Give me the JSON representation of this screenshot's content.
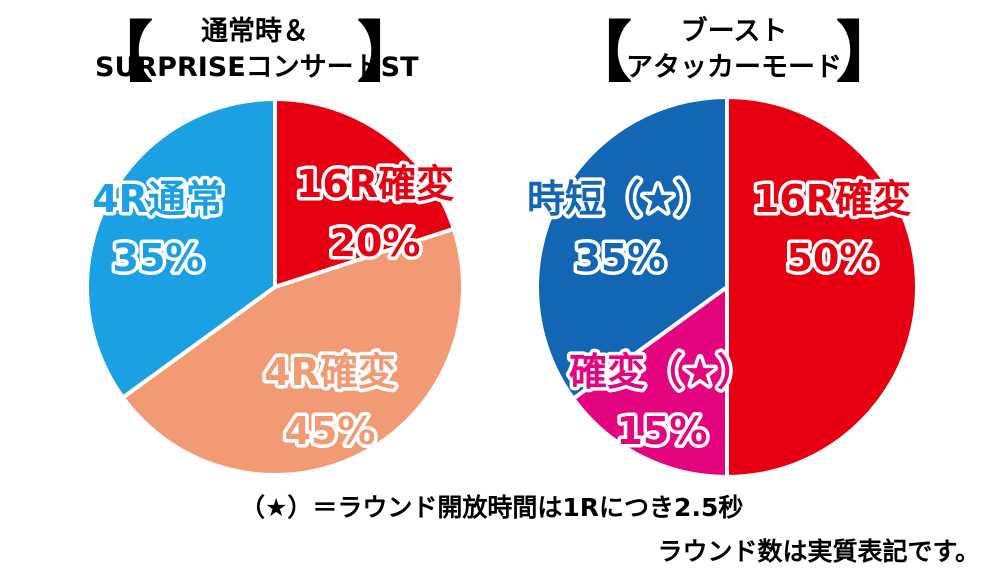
{
  "charts": {
    "left": {
      "title_line1": "通常時＆",
      "title_line2": "SURPRISEコンサートST",
      "bracket_open": "【",
      "bracket_close": "】"
    },
    "right": {
      "title_line1": "ブースト",
      "title_line2": "アタッカーモード",
      "bracket_open": "【",
      "bracket_close": "】"
    }
  },
  "notes": {
    "line1": "（★）＝ラウンド開放時間は1Rにつき2.5秒",
    "line2": "ラウンド数は実質表記です。"
  },
  "chart_data": [
    {
      "type": "pie",
      "title": "通常時＆SURPRISEコンサートST",
      "slices": [
        {
          "label": "16R確変",
          "value": 20,
          "display": "20%",
          "color": "#e60012"
        },
        {
          "label": "4R確変",
          "value": 45,
          "display": "45%",
          "color": "#f19a74"
        },
        {
          "label": "4R通常",
          "value": 35,
          "display": "35%",
          "color": "#1aa0e3"
        }
      ]
    },
    {
      "type": "pie",
      "title": "ブーストアタッカーモード",
      "slices": [
        {
          "label": "16R確変",
          "value": 50,
          "display": "50%",
          "color": "#e60012"
        },
        {
          "label": "確変（★）",
          "value": 15,
          "display": "15%",
          "color": "#e4047f"
        },
        {
          "label": "時短（★）",
          "value": 35,
          "display": "35%",
          "color": "#1266b4"
        }
      ]
    }
  ]
}
